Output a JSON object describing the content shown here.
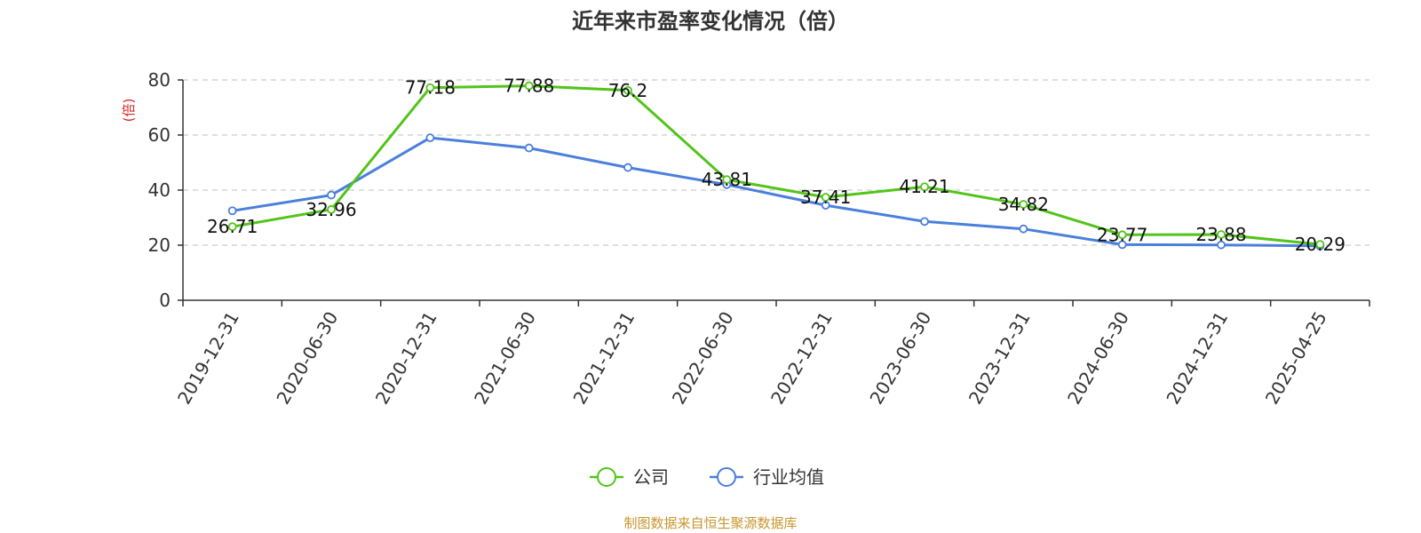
{
  "chart_data": {
    "type": "line",
    "title": "近年来市盈率变化情况（倍）",
    "ylabel": "(倍)",
    "xlabel": "",
    "ylim": [
      0,
      80
    ],
    "yticks": [
      0,
      20,
      40,
      60,
      80
    ],
    "grid": true,
    "legend_position": "bottom-center",
    "categories": [
      "2019-12-31",
      "2020-06-30",
      "2020-12-31",
      "2021-06-30",
      "2021-12-31",
      "2022-06-30",
      "2022-12-31",
      "2023-06-30",
      "2023-12-31",
      "2024-06-30",
      "2024-12-31",
      "2025-04-25"
    ],
    "series": [
      {
        "name": "公司",
        "color": "#52c41a",
        "values": [
          26.71,
          32.96,
          77.18,
          77.88,
          76.2,
          43.81,
          37.41,
          41.21,
          34.82,
          23.77,
          23.88,
          20.29
        ],
        "labels": [
          "26.71",
          "32.96",
          "77.18",
          "77.88",
          "76.2",
          "43.81",
          "37.41",
          "41.21",
          "34.82",
          "23.77",
          "23.88",
          "20.29"
        ]
      },
      {
        "name": "行业均值",
        "color": "#4a7fdc",
        "values": [
          32.5,
          38.2,
          59.0,
          55.3,
          48.2,
          42.0,
          34.5,
          28.6,
          25.9,
          20.2,
          20.1,
          19.7
        ]
      }
    ],
    "source": "制图数据来自恒生聚源数据库"
  }
}
